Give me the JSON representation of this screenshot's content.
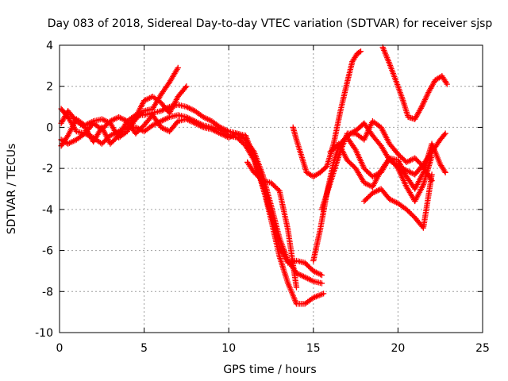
{
  "chart_data": {
    "type": "scatter",
    "title": "Day 083 of 2018, Sidereal Day-to-day VTEC variation (SDTVAR) for receiver sjsp",
    "xlabel": "GPS time / hours",
    "ylabel": "SDTVAR / TECUs",
    "xlim": [
      0,
      25
    ],
    "ylim": [
      -10,
      4
    ],
    "xticks": [
      0,
      5,
      10,
      15,
      20,
      25
    ],
    "yticks": [
      -10,
      -8,
      -6,
      -4,
      -2,
      0,
      2,
      4
    ],
    "xtick_labels": [
      "0",
      "5",
      "10",
      "15",
      "20",
      "25"
    ],
    "ytick_labels": [
      "-10",
      "-8",
      "-6",
      "-4",
      "-2",
      "0",
      "2",
      "4"
    ],
    "grid": true,
    "legend": "none",
    "marker": "plus",
    "color": "#ff0000",
    "series": [
      {
        "x": [
          0.1,
          0.5,
          1.0,
          1.5,
          2.0,
          2.5,
          3.0,
          3.5,
          4.0,
          4.5,
          5.0,
          5.5,
          6.0,
          6.5,
          7.0,
          7.5,
          8.0,
          8.5,
          9.0,
          9.5,
          10.0,
          10.5,
          11.0,
          11.5,
          12.0,
          12.5,
          13.0,
          13.5,
          14.0,
          14.5,
          15.0,
          15.5
        ],
        "y": [
          0.9,
          0.5,
          -0.2,
          -0.3,
          0.2,
          -0.1,
          0.3,
          0.5,
          0.3,
          0.6,
          0.6,
          0.7,
          0.8,
          1.0,
          1.1,
          1.0,
          0.8,
          0.5,
          0.3,
          0.0,
          -0.2,
          -0.3,
          -0.6,
          -1.2,
          -2.3,
          -3.8,
          -5.4,
          -6.5,
          -7.1,
          -7.3,
          -7.5,
          -7.6
        ]
      },
      {
        "x": [
          0.1,
          0.5,
          1.0,
          1.5,
          2.0,
          2.5,
          3.0,
          3.5,
          4.0,
          4.5,
          5.0,
          5.5,
          6.0,
          6.5,
          7.0,
          7.5,
          8.0,
          8.5,
          9.0,
          9.5,
          10.0,
          10.5,
          11.0,
          11.5,
          12.0,
          12.5,
          13.0,
          13.5,
          14.0,
          14.5,
          15.0,
          15.6
        ],
        "y": [
          -0.6,
          -0.8,
          -0.6,
          -0.3,
          -0.5,
          -0.8,
          -0.4,
          -0.2,
          0.0,
          0.0,
          -0.2,
          0.1,
          0.3,
          0.5,
          0.6,
          0.5,
          0.3,
          0.1,
          0.0,
          -0.1,
          -0.4,
          -0.5,
          -0.9,
          -1.6,
          -2.8,
          -4.5,
          -6.3,
          -7.6,
          -8.6,
          -8.6,
          -8.3,
          -8.1
        ]
      },
      {
        "x": [
          0.1,
          0.5,
          1.0,
          1.5,
          2.0,
          2.5,
          3.0,
          3.5,
          4.0,
          4.5,
          5.0,
          5.5,
          6.0,
          6.5,
          7.0,
          7.5,
          8.0,
          8.5,
          9.0,
          9.5,
          10.0,
          10.5,
          11.0,
          11.5,
          12.0,
          12.5,
          13.0,
          13.5,
          14.0,
          14.5,
          15.0,
          15.5
        ],
        "y": [
          0.2,
          0.8,
          0.3,
          0.0,
          -0.7,
          0.0,
          -0.8,
          -0.4,
          0.3,
          -0.3,
          0.1,
          0.6,
          0.0,
          -0.2,
          0.3,
          0.4,
          0.2,
          0.0,
          -0.1,
          -0.3,
          -0.5,
          -0.3,
          -0.4,
          -1.5,
          -2.9,
          -4.2,
          -5.8,
          -6.6,
          -6.5,
          -6.6,
          -7.0,
          -7.2
        ]
      },
      {
        "x": [
          0.1,
          0.5,
          1.0,
          1.5,
          2.0,
          2.5,
          3.0,
          3.5,
          4.0,
          4.5,
          5.0,
          5.5,
          6.0,
          6.5,
          7.0
        ],
        "y": [
          -0.9,
          -0.4,
          0.4,
          0.1,
          0.3,
          0.4,
          0.2,
          -0.5,
          -0.2,
          0.4,
          0.8,
          0.9,
          1.6,
          2.2,
          2.9
        ]
      },
      {
        "x": [
          4.0,
          4.5,
          5.0,
          5.5,
          6.0,
          6.5,
          7.0,
          7.5
        ],
        "y": [
          -0.1,
          0.5,
          1.3,
          1.5,
          1.2,
          0.7,
          1.5,
          2.0
        ]
      },
      {
        "x": [
          11.1,
          11.5,
          12.0,
          12.5,
          13.0,
          13.5,
          14.0
        ],
        "y": [
          -1.7,
          -2.2,
          -2.6,
          -2.7,
          -3.1,
          -5.0,
          -7.8
        ]
      },
      {
        "x": [
          13.8,
          14.0,
          14.3,
          14.6,
          15.0,
          15.4,
          15.8,
          16.2,
          16.6,
          17.0,
          17.3,
          17.6,
          17.8
        ],
        "y": [
          0.0,
          -0.6,
          -1.4,
          -2.2,
          -2.4,
          -2.2,
          -1.9,
          -0.8,
          0.8,
          2.2,
          3.2,
          3.6,
          3.7
        ]
      },
      {
        "x": [
          15.0,
          15.4,
          15.8,
          16.2,
          16.5,
          16.8,
          17.2,
          17.6,
          18.0,
          18.5,
          19.0,
          19.5,
          20.0,
          20.5,
          21.0,
          21.5,
          22.0,
          22.5,
          22.8
        ],
        "y": [
          -6.5,
          -5.0,
          -3.2,
          -1.7,
          -0.9,
          -0.6,
          -0.3,
          -0.1,
          0.2,
          -0.4,
          -0.9,
          -1.6,
          -1.9,
          -2.1,
          -2.3,
          -1.8,
          -1.2,
          -0.6,
          -0.3
        ]
      },
      {
        "x": [
          15.5,
          16.0,
          16.5,
          17.0,
          17.5,
          18.0,
          18.5,
          19.0,
          19.5,
          20.0,
          20.5,
          21.0,
          21.5,
          22.0
        ],
        "y": [
          -4.0,
          -2.7,
          -1.4,
          -0.3,
          -0.3,
          -0.6,
          0.3,
          0.0,
          -0.8,
          -1.3,
          -1.7,
          -1.5,
          -1.9,
          -2.6
        ]
      },
      {
        "x": [
          16.0,
          16.5,
          17.0,
          17.5,
          18.0,
          18.5,
          19.0,
          19.5,
          20.0,
          20.5,
          21.0,
          21.5,
          22.0
        ],
        "y": [
          -1.2,
          -0.8,
          -1.6,
          -2.0,
          -2.7,
          -2.9,
          -2.1,
          -1.5,
          -2.0,
          -2.9,
          -3.6,
          -2.8,
          -1.4
        ]
      },
      {
        "x": [
          17.0,
          17.5,
          18.0,
          18.5,
          19.0,
          19.5,
          20.0,
          20.5,
          21.0,
          21.5,
          22.0,
          22.5,
          22.8
        ],
        "y": [
          -0.5,
          -1.1,
          -2.0,
          -2.4,
          -2.2,
          -1.5,
          -1.6,
          -2.4,
          -3.0,
          -2.2,
          -0.8,
          -1.8,
          -2.2
        ]
      },
      {
        "x": [
          18.0,
          18.5,
          19.0,
          19.5,
          20.0,
          20.5,
          21.0,
          21.5,
          22.0
        ],
        "y": [
          -3.6,
          -3.2,
          -3.0,
          -3.5,
          -3.7,
          -4.0,
          -4.4,
          -4.9,
          -2.3
        ]
      },
      {
        "x": [
          19.1,
          19.5,
          20.0,
          20.3,
          20.6,
          21.0,
          21.4,
          21.8,
          22.2,
          22.6,
          22.9
        ],
        "y": [
          3.9,
          3.1,
          2.0,
          1.3,
          0.5,
          0.4,
          1.0,
          1.7,
          2.3,
          2.5,
          2.1
        ]
      }
    ]
  }
}
